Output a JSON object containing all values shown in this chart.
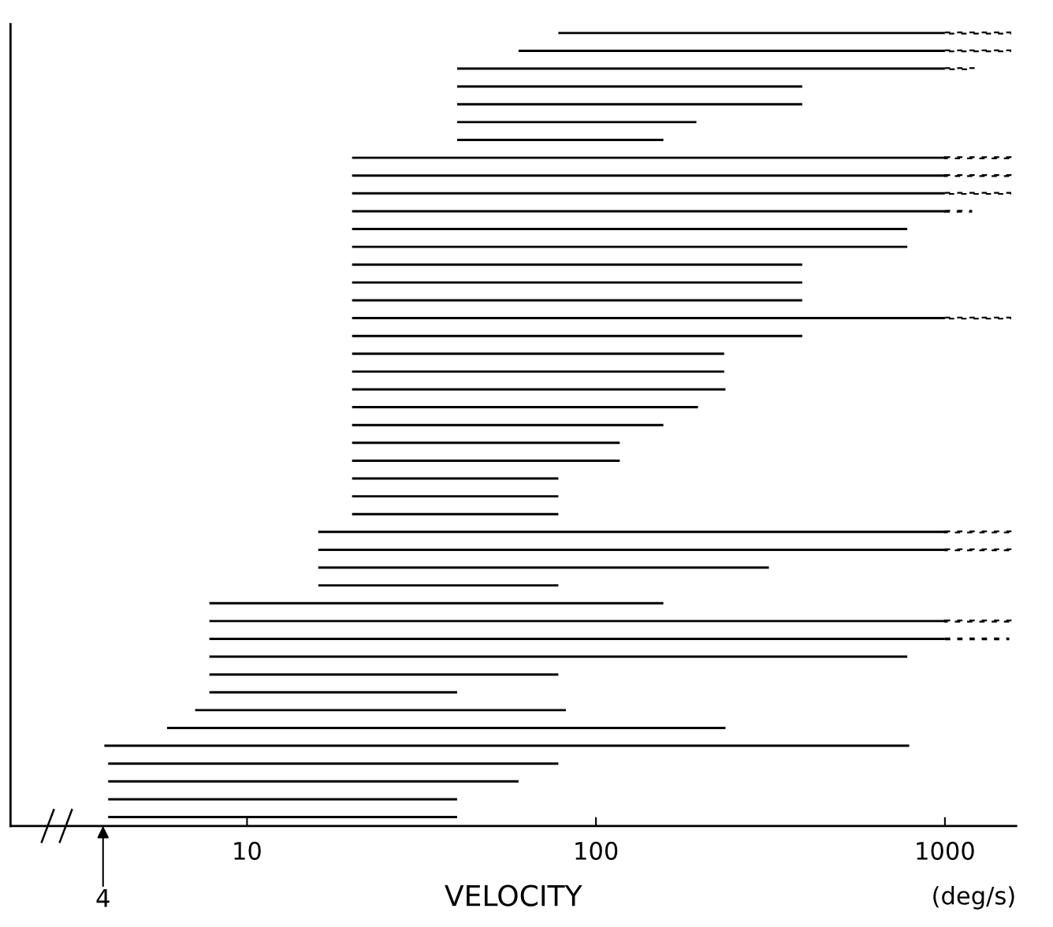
{
  "chart_data": {
    "type": "bar",
    "orientation": "horizontal",
    "categories": [
      null,
      null,
      null,
      null,
      null,
      null,
      null,
      null,
      null,
      null,
      null,
      null,
      null,
      null,
      null,
      null,
      null,
      null,
      null,
      null,
      null,
      null,
      null,
      null,
      null,
      null,
      null,
      null,
      null,
      null,
      null,
      null,
      null,
      null,
      null,
      null,
      null,
      null,
      null,
      null,
      null,
      null,
      null,
      null,
      null
    ],
    "series": [
      {
        "color": "#000000",
        "line_style": "solid",
        "base": [
          78,
          60,
          40,
          40,
          40,
          40,
          40,
          20,
          20,
          20,
          20,
          20,
          20,
          20,
          20,
          20,
          20,
          20,
          20,
          20,
          20,
          20,
          20,
          20,
          20,
          20,
          20,
          20,
          16,
          16,
          16,
          16,
          7.8,
          7.8,
          7.8,
          7.8,
          7.8,
          7.8,
          7.1,
          5.9,
          3.9,
          4,
          4,
          4,
          4
        ],
        "values": [
          922,
          940,
          960,
          350,
          350,
          154,
          116,
          980,
          980,
          980,
          980,
          760,
          760,
          370,
          370,
          370,
          980,
          370,
          213,
          213,
          215,
          176,
          136,
          97,
          97,
          58,
          58,
          58,
          984,
          984,
          297,
          62,
          148.2,
          992.2,
          992.2,
          772.2,
          70.2,
          32.2,
          74.9,
          229.1,
          786.1,
          74,
          56,
          36,
          36
        ]
      },
      {
        "color": "#000000",
        "line_style": "dashed",
        "base": [
          1000,
          1000,
          1000,
          null,
          null,
          null,
          null,
          1000,
          1000,
          1000,
          1000,
          null,
          null,
          null,
          null,
          null,
          1000,
          null,
          null,
          null,
          null,
          null,
          null,
          null,
          null,
          null,
          null,
          null,
          1000,
          1000,
          null,
          null,
          null,
          1000,
          1000,
          null,
          null,
          null,
          null,
          null,
          null,
          null,
          null,
          null,
          null
        ],
        "values": [
          540,
          540,
          210,
          null,
          null,
          null,
          null,
          570,
          570,
          540,
          190,
          null,
          null,
          null,
          null,
          null,
          540,
          null,
          null,
          null,
          null,
          null,
          null,
          null,
          null,
          null,
          null,
          null,
          570,
          570,
          null,
          null,
          null,
          570,
          520,
          null,
          null,
          null,
          null,
          null,
          null,
          null,
          null,
          null,
          null
        ]
      }
    ],
    "log": "x",
    "xlim": [
      2.1,
      1600
    ],
    "xticks": [
      10,
      100,
      1000
    ],
    "tick_labels": "x",
    "xlabel": "VELOCITY",
    "annotations": [
      "4",
      "(deg/s)"
    ],
    "grid": false,
    "legend": false
  }
}
